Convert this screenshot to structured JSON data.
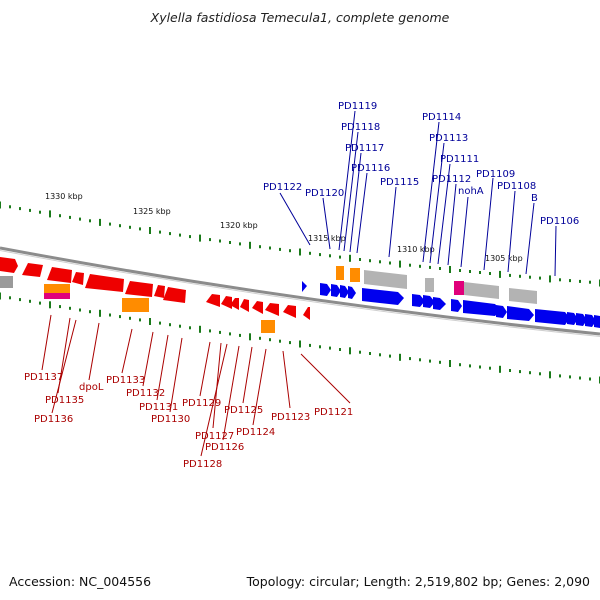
{
  "title": "Xylella fastidiosa Temecula1, complete genome",
  "footer": {
    "accession": "Accession: NC_004556",
    "summary": "Topology: circular; Length: 2,519,802 bp; Genes: 2,090"
  },
  "ticks": [
    "1330 kbp",
    "1325 kbp",
    "1320 kbp",
    "1315 kbp",
    "1310 kbp",
    "1305 kbp"
  ],
  "colors": {
    "forward_gene": "#0000ee",
    "reverse_gene": "#ee0000",
    "forward_label": "#000099",
    "reverse_label": "#aa0000",
    "pseudo": "#b3b3b3",
    "orange": "#ff8c00",
    "magenta": "#e0007a",
    "tick": "#1a7a1a",
    "backbone": "#8c8c8c"
  },
  "forward_labels": [
    "PD1119",
    "PD1118",
    "PD1117",
    "PD1116",
    "PD1122",
    "PD1120",
    "PD1115",
    "PD1114",
    "PD1113",
    "PD1111",
    "PD1112",
    "nohA",
    "PD1109",
    "PD1108",
    "B",
    "PD1106"
  ],
  "reverse_labels": [
    "PD1137",
    "PD1135",
    "PD1136",
    "dpoL",
    "PD1133",
    "PD1132",
    "PD1131",
    "PD1130",
    "PD1129",
    "PD1127",
    "PD1128",
    "PD1126",
    "PD1125",
    "PD1124",
    "PD1123",
    "PD1121"
  ]
}
